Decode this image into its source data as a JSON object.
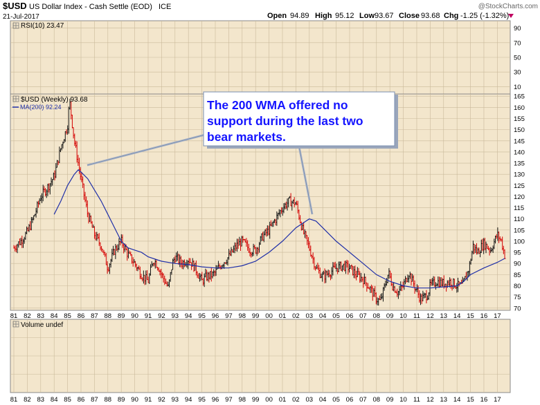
{
  "header": {
    "symbol": "$USD",
    "name": "US Dollar Index - Cash Settle (EOD)",
    "exchange": "ICE",
    "date": "21-Jul-2017",
    "watermark": "@StockCharts.com",
    "open_label": "Open",
    "open": "94.89",
    "high_label": "High",
    "high": "95.12",
    "low_label": "Low",
    "low": "93.67",
    "close_label": "Close",
    "close": "93.68",
    "chg_label": "Chg",
    "chg": "-1.25 (-1.32%)"
  },
  "rsi_panel": {
    "label": "RSI(10) 23.47"
  },
  "price_panel": {
    "label": "$USD (Weekly) 93.68",
    "ma_label": "MA(200) 92.24"
  },
  "volume_panel": {
    "label": "Volume undef"
  },
  "annotation": {
    "lines": [
      "The 200 WMA offered no",
      "support during the last two",
      "bear markets."
    ]
  },
  "colors": {
    "panel_bg": "#f3e6cc",
    "grid": "#c9b99a",
    "price_up": "#111111",
    "price_down": "#d40000",
    "ma": "#1f2fa8",
    "annotation_text": "#1414ff",
    "annotation_border": "#7a8fb0"
  },
  "chart_data": [
    {
      "type": "line",
      "panel": "RSI(10)",
      "ylim": [
        0,
        100
      ],
      "yticks": [
        10,
        30,
        50,
        70,
        90
      ],
      "series": []
    },
    {
      "type": "line",
      "panel": "$USD (Weekly)",
      "xlim": [
        1981,
        2017.6
      ],
      "ylim": [
        69,
        166
      ],
      "yticks": [
        70,
        75,
        80,
        85,
        90,
        95,
        100,
        105,
        110,
        115,
        120,
        125,
        130,
        135,
        140,
        145,
        150,
        155,
        160,
        165
      ],
      "xtick_labels": [
        "81",
        "82",
        "83",
        "84",
        "85",
        "86",
        "87",
        "88",
        "89",
        "90",
        "91",
        "92",
        "93",
        "94",
        "95",
        "96",
        "97",
        "98",
        "99",
        "00",
        "01",
        "02",
        "03",
        "04",
        "05",
        "06",
        "07",
        "08",
        "09",
        "10",
        "11",
        "12",
        "13",
        "14",
        "15",
        "16",
        "17"
      ],
      "series": [
        {
          "name": "$USD (Weekly)",
          "x": [
            1981.0,
            1981.5,
            1982.0,
            1982.5,
            1983.0,
            1983.5,
            1984.0,
            1984.5,
            1985.0,
            1985.15,
            1985.5,
            1986.0,
            1986.5,
            1987.0,
            1987.5,
            1988.0,
            1988.5,
            1989.0,
            1989.5,
            1990.0,
            1990.5,
            1991.0,
            1991.4,
            1991.8,
            1992.0,
            1992.5,
            1992.8,
            1993.0,
            1993.5,
            1994.0,
            1994.5,
            1995.0,
            1995.3,
            1995.8,
            1996.0,
            1996.5,
            1997.0,
            1997.6,
            1998.0,
            1998.6,
            1999.0,
            1999.5,
            2000.0,
            2000.5,
            2001.0,
            2001.5,
            2002.0,
            2002.5,
            2003.0,
            2003.5,
            2004.0,
            2004.5,
            2005.0,
            2005.5,
            2006.0,
            2006.5,
            2007.0,
            2007.5,
            2008.0,
            2008.3,
            2008.9,
            2009.2,
            2009.6,
            2010.0,
            2010.4,
            2010.9,
            2011.3,
            2011.8,
            2012.0,
            2012.5,
            2013.0,
            2013.5,
            2014.0,
            2014.4,
            2014.9,
            2015.2,
            2015.5,
            2016.0,
            2016.5,
            2017.0,
            2017.3,
            2017.55
          ],
          "values": [
            97,
            100,
            104,
            111,
            120,
            124,
            129,
            142,
            152,
            163,
            145,
            128,
            112,
            103,
            98,
            88,
            96,
            100,
            94,
            90,
            85,
            82,
            92,
            88,
            85,
            79,
            90,
            93,
            90,
            92,
            88,
            82,
            84,
            85,
            86,
            90,
            93,
            98,
            100,
            96,
            96,
            102,
            105,
            110,
            115,
            118,
            117,
            105,
            97,
            88,
            84,
            86,
            88,
            89,
            88,
            85,
            83,
            79,
            74,
            73,
            86,
            80,
            77,
            80,
            86,
            79,
            74,
            76,
            80,
            82,
            81,
            82,
            80,
            80,
            88,
            98,
            95,
            99,
            96,
            103,
            100,
            93.68
          ]
        },
        {
          "name": "MA(200)",
          "x": [
            1984.0,
            1984.5,
            1985.0,
            1985.5,
            1985.8,
            1986.0,
            1986.5,
            1987.0,
            1987.5,
            1988.0,
            1988.5,
            1989.0,
            1989.5,
            1990.0,
            1990.5,
            1991.0,
            1992.0,
            1993.0,
            1994.0,
            1995.0,
            1996.0,
            1997.0,
            1998.0,
            1999.0,
            2000.0,
            2001.0,
            2002.0,
            2003.0,
            2003.5,
            2004.0,
            2005.0,
            2006.0,
            2007.0,
            2008.0,
            2009.0,
            2010.0,
            2011.0,
            2012.0,
            2013.0,
            2014.0,
            2014.5,
            2015.0,
            2016.0,
            2017.0,
            2017.55
          ],
          "values": [
            112,
            118,
            125,
            130,
            132,
            131,
            128,
            123,
            118,
            112,
            106,
            100,
            97,
            96,
            95,
            93,
            91,
            90,
            89.5,
            88.5,
            88,
            88,
            89,
            91,
            95,
            100,
            106,
            110,
            109,
            106,
            100,
            95,
            90,
            85,
            82,
            80,
            79,
            79,
            79.5,
            80,
            82,
            85,
            88,
            90.5,
            92.24
          ]
        }
      ]
    },
    {
      "type": "bar",
      "panel": "Volume",
      "series": []
    }
  ]
}
